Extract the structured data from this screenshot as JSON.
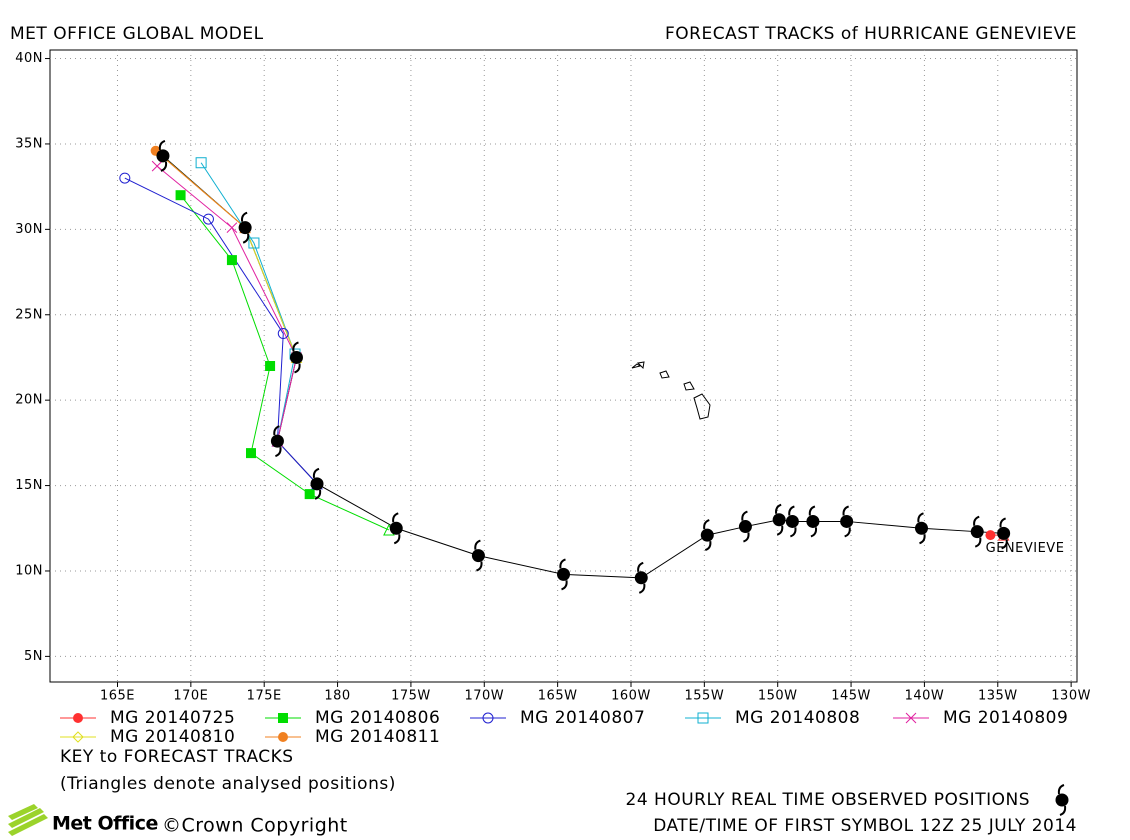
{
  "chart_data": {
    "type": "track-map",
    "title_left": "MET OFFICE GLOBAL MODEL",
    "title_right": "FORECAST TRACKS of HURRICANE GENEVIEVE",
    "annotation": "GENEVIEVE",
    "key_title": "KEY to FORECAST TRACKS",
    "key_note": "(Triangles denote analysed positions)",
    "footer_date": "DATE/TIME OF FIRST SYMBOL 12Z 25 JULY 2014",
    "logo": "Met Office",
    "copyright": "©Crown Copyright",
    "xlim": [
      160.4,
      230.4
    ],
    "ylim": [
      3.5,
      40.5
    ],
    "grid": true,
    "xticks": [
      {
        "value": 165,
        "label": "165E"
      },
      {
        "value": 170,
        "label": "170E"
      },
      {
        "value": 175,
        "label": "175E"
      },
      180,
      {
        "value": 185,
        "label": "175W"
      },
      {
        "value": 190,
        "label": "170W"
      },
      {
        "value": 195,
        "label": "165W"
      },
      {
        "value": 200,
        "label": "160W"
      },
      {
        "value": 205,
        "label": "155W"
      },
      {
        "value": 210,
        "label": "150W"
      },
      {
        "value": 215,
        "label": "145W"
      },
      {
        "value": 220,
        "label": "140W"
      },
      {
        "value": 225,
        "label": "135W"
      },
      {
        "value": 230,
        "label": "130W"
      }
    ],
    "yticks": [
      {
        "value": 5,
        "label": "5N"
      },
      {
        "value": 10,
        "label": "10N"
      },
      {
        "value": 15,
        "label": "15N"
      },
      {
        "value": 20,
        "label": "20N"
      },
      {
        "value": 25,
        "label": "25N"
      },
      {
        "value": 30,
        "label": "30N"
      },
      {
        "value": 35,
        "label": "35N"
      },
      {
        "value": 40,
        "label": "40N"
      }
    ],
    "observed": {
      "name": "24 HOURLY REAL TIME OBSERVED POSITIONS",
      "color": "#000000",
      "x": [
        225.4,
        223.6,
        219.8,
        214.7,
        212.4,
        211.0,
        210.1,
        207.8,
        205.2,
        200.7,
        195.4,
        189.6,
        184.0,
        178.6,
        175.9,
        177.2,
        173.7,
        168.1
      ],
      "values": [
        12.2,
        12.3,
        12.5,
        12.9,
        12.9,
        12.9,
        13.0,
        12.6,
        12.1,
        9.6,
        9.8,
        10.9,
        12.5,
        15.1,
        17.6,
        22.5,
        30.1,
        34.3
      ]
    },
    "series": [
      {
        "name": "MG 20140725",
        "color": "#ff3030",
        "marker": "circle-filled",
        "x": [
          225.4,
          224.5
        ],
        "values": [
          12.1,
          12.1
        ]
      },
      {
        "name": "MG 20140806",
        "color": "#00dd00",
        "marker": "square-filled",
        "x": [
          183.5,
          178.1,
          174.1,
          175.4,
          172.8,
          169.3
        ],
        "values": [
          12.4,
          14.5,
          16.9,
          22.0,
          28.2,
          32.0
        ]
      },
      {
        "name": "MG 20140807",
        "color": "#2020d0",
        "marker": "circle-open",
        "x": [
          178.6,
          175.9,
          176.3,
          171.2,
          165.5
        ],
        "values": [
          15.1,
          17.6,
          23.9,
          30.6,
          33.0
        ]
      },
      {
        "name": "MG 20140808",
        "color": "#10b0d0",
        "marker": "square-open",
        "x": [
          175.9,
          177.1,
          174.3,
          170.7
        ],
        "values": [
          17.6,
          22.7,
          29.2,
          33.9
        ]
      },
      {
        "name": "MG 20140809",
        "color": "#e020a0",
        "marker": "x",
        "x": [
          175.9,
          177.2,
          172.8,
          167.7
        ],
        "values": [
          17.6,
          22.5,
          30.1,
          33.7
        ]
      },
      {
        "name": "MG 20140810",
        "color": "#e0e020",
        "marker": "diamond-open",
        "x": [
          177.2,
          173.7,
          167.9
        ],
        "values": [
          22.5,
          30.1,
          34.4
        ]
      },
      {
        "name": "MG 20140811",
        "color": "#f08020",
        "marker": "circle-filled",
        "x": [
          173.7,
          167.6
        ],
        "values": [
          30.1,
          34.6
        ]
      }
    ]
  }
}
